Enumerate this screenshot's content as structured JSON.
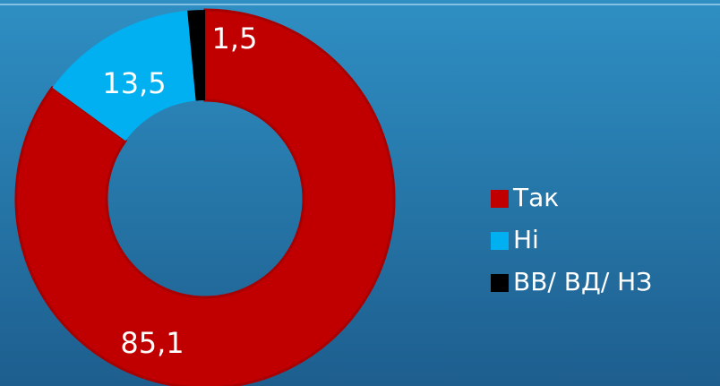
{
  "chart_data": {
    "type": "donut",
    "categories": [
      "Так",
      "Ні",
      "ВВ/ ВД/ НЗ"
    ],
    "values": [
      85.1,
      13.5,
      1.5
    ],
    "value_labels": [
      "85,1",
      "13,5",
      "1,5"
    ],
    "colors": [
      "#c00000",
      "#00b0f0",
      "#000000"
    ],
    "legend": "right"
  }
}
